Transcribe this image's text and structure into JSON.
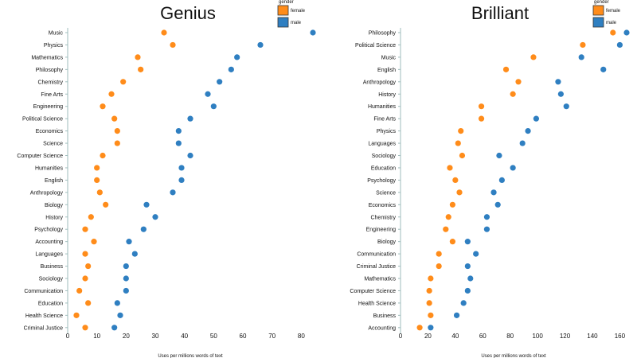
{
  "colors": {
    "female": "#ff8c1a",
    "male": "#2f7fc1",
    "axis": "#9fbcbc",
    "text": "#111111"
  },
  "chart_data": [
    {
      "type": "scatter",
      "title": "Genius",
      "xlabel": "Uses per millions words of text",
      "xlim": [
        0,
        84
      ],
      "xticks": [
        0,
        10,
        20,
        30,
        40,
        50,
        60,
        70,
        80
      ],
      "legend": {
        "title": "gender",
        "placement": "top-right",
        "entries": [
          "female",
          "male"
        ]
      },
      "categories": [
        "Music",
        "Physics",
        "Mathematics",
        "Philosophy",
        "Chemistry",
        "Fine Arts",
        "Engineering",
        "Political Science",
        "Economics",
        "Science",
        "Computer Science",
        "Humanities",
        "English",
        "Anthropology",
        "Biology",
        "History",
        "Psychology",
        "Accounting",
        "Languages",
        "Business",
        "Sociology",
        "Communication",
        "Education",
        "Health Science",
        "Criminal Justice"
      ],
      "series": [
        {
          "name": "female",
          "values": [
            33,
            36,
            24,
            25,
            19,
            15,
            12,
            16,
            17,
            17,
            12,
            10,
            10,
            11,
            13,
            8,
            6,
            9,
            6,
            7,
            6,
            4,
            7,
            3,
            6
          ]
        },
        {
          "name": "male",
          "values": [
            84,
            66,
            58,
            56,
            52,
            48,
            50,
            42,
            38,
            38,
            42,
            39,
            39,
            36,
            27,
            30,
            26,
            21,
            23,
            20,
            20,
            20,
            17,
            18,
            16
          ]
        }
      ]
    },
    {
      "type": "scatter",
      "title": "Brilliant",
      "xlabel": "Uses per millions words of text",
      "xlim": [
        0,
        165
      ],
      "xticks": [
        0,
        20,
        40,
        60,
        80,
        100,
        120,
        140,
        160
      ],
      "legend": {
        "title": "gender",
        "placement": "top-right",
        "entries": [
          "female",
          "male"
        ]
      },
      "categories": [
        "Philosophy",
        "Political Science",
        "Music",
        "English",
        "Anthropology",
        "History",
        "Humanities",
        "Fine Arts",
        "Physics",
        "Languages",
        "Sociology",
        "Education",
        "Psychology",
        "Science",
        "Economics",
        "Chemistry",
        "Engineering",
        "Biology",
        "Communication",
        "Criminal Justice",
        "Mathematics",
        "Computer Science",
        "Health Science",
        "Business",
        "Accounting"
      ],
      "series": [
        {
          "name": "female",
          "values": [
            155,
            133,
            97,
            77,
            86,
            82,
            59,
            59,
            44,
            42,
            45,
            36,
            40,
            43,
            38,
            35,
            33,
            38,
            28,
            28,
            22,
            21,
            21,
            22,
            14
          ]
        },
        {
          "name": "male",
          "values": [
            165,
            160,
            132,
            148,
            115,
            117,
            121,
            99,
            93,
            89,
            72,
            82,
            74,
            68,
            71,
            63,
            63,
            49,
            55,
            49,
            51,
            49,
            46,
            41,
            22
          ]
        }
      ]
    }
  ]
}
